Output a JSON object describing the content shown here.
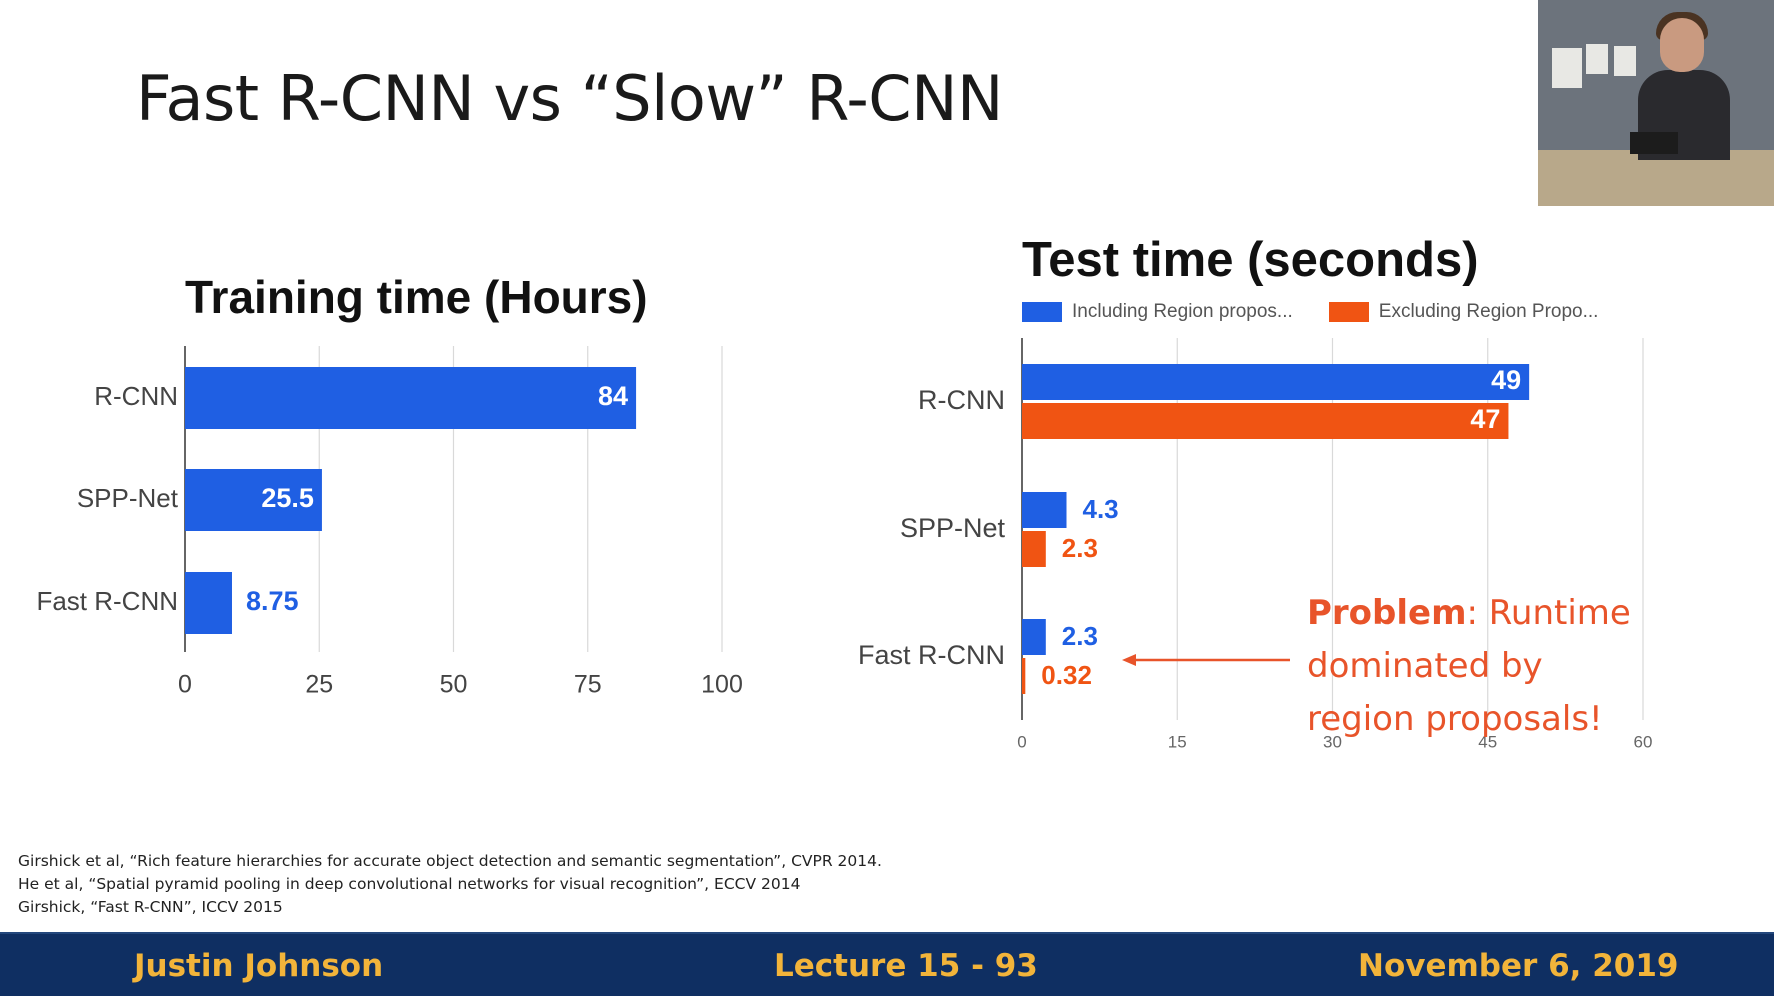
{
  "slide": {
    "title": "Fast R-CNN vs “Slow” R-CNN",
    "problem": {
      "bold": "Problem",
      "rest": ": Runtime dominated by region proposals!"
    },
    "references": [
      "Girshick et al, “Rich feature hierarchies for accurate object detection and semantic segmentation”, CVPR 2014.",
      "He et al, “Spatial pyramid pooling in deep convolutional networks for visual recognition”, ECCV 2014",
      "Girshick, “Fast R-CNN”, ICCV 2015"
    ],
    "footer": {
      "author": "Justin Johnson",
      "lecture": "Lecture 15 - 93",
      "date": "November 6, 2019"
    }
  },
  "colors": {
    "blue": "#1f5fe3",
    "orange": "#f05413",
    "grid": "#d9d9d9",
    "footer_bg": "#0f2f62",
    "footer_text": "#f2b43a",
    "accent_red": "#e8542a"
  },
  "chart_data": [
    {
      "type": "bar",
      "orientation": "horizontal",
      "title": "Training time (Hours)",
      "categories": [
        "R-CNN",
        "SPP-Net",
        "Fast R-CNN"
      ],
      "series": [
        {
          "values": [
            84,
            25.5,
            8.75
          ],
          "labels": [
            "84",
            "25.5",
            "8.75"
          ]
        }
      ],
      "xlim": [
        0,
        100
      ],
      "xticks": [
        "0",
        "25",
        "50",
        "75",
        "100"
      ],
      "grid": true
    },
    {
      "type": "bar",
      "orientation": "horizontal",
      "title": "Test time (seconds)",
      "categories": [
        "R-CNN",
        "SPP-Net",
        "Fast R-CNN"
      ],
      "series": [
        {
          "name": "Including Region propos...",
          "values": [
            49,
            4.3,
            2.3
          ],
          "labels": [
            "49",
            "4.3",
            "2.3"
          ]
        },
        {
          "name": "Excluding Region Propo...",
          "values": [
            47,
            2.3,
            0.32
          ],
          "labels": [
            "47",
            "2.3",
            "0.32"
          ]
        }
      ],
      "xlim": [
        0,
        60
      ],
      "xticks": [
        "0",
        "15",
        "30",
        "45",
        "60"
      ],
      "legend_position": "top",
      "grid": true
    }
  ]
}
